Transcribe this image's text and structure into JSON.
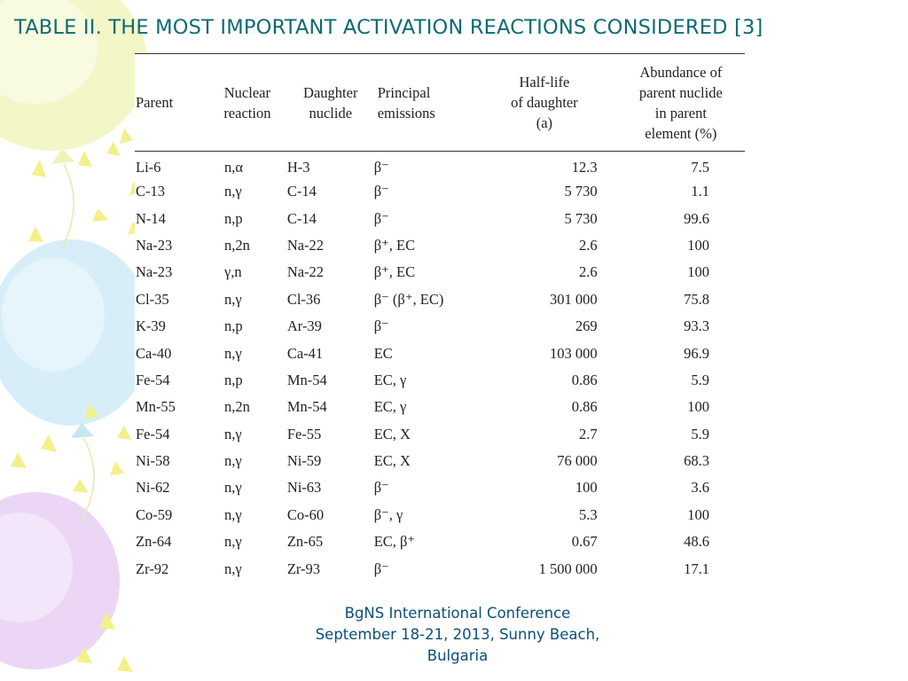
{
  "slide": {
    "title": "TABLE II. THE MOST IMPORTANT ACTIVATION REACTIONS CONSIDERED [3]"
  },
  "table": {
    "headers": [
      "Parent",
      "Nuclear reaction",
      "Daughter nuclide",
      "Principal emissions",
      "Half-life of daughter (a)",
      "Abundance of parent nuclide in parent element (%)"
    ],
    "rows": [
      {
        "parent": "Li-6",
        "reaction": "n,α",
        "daughter": "H-3",
        "emissions": "β⁻",
        "half_life": "12.3",
        "abundance": "7.5"
      },
      {
        "parent": "C-13",
        "reaction": "n,γ",
        "daughter": "C-14",
        "emissions": "β⁻",
        "half_life": "5 730",
        "abundance": "1.1"
      },
      {
        "parent": "N-14",
        "reaction": "n,p",
        "daughter": "C-14",
        "emissions": "β⁻",
        "half_life": "5 730",
        "abundance": "99.6"
      },
      {
        "parent": "Na-23",
        "reaction": "n,2n",
        "daughter": "Na-22",
        "emissions": "β⁺, EC",
        "half_life": "2.6",
        "abundance": "100"
      },
      {
        "parent": "Na-23",
        "reaction": "γ,n",
        "daughter": "Na-22",
        "emissions": "β⁺, EC",
        "half_life": "2.6",
        "abundance": "100"
      },
      {
        "parent": "Cl-35",
        "reaction": "n,γ",
        "daughter": "Cl-36",
        "emissions": "β⁻ (β⁺, EC)",
        "half_life": "301 000",
        "abundance": "75.8"
      },
      {
        "parent": "K-39",
        "reaction": "n,p",
        "daughter": "Ar-39",
        "emissions": "β⁻",
        "half_life": "269",
        "abundance": "93.3"
      },
      {
        "parent": "Ca-40",
        "reaction": "n,γ",
        "daughter": "Ca-41",
        "emissions": "EC",
        "half_life": "103 000",
        "abundance": "96.9"
      },
      {
        "parent": "Fe-54",
        "reaction": "n,p",
        "daughter": "Mn-54",
        "emissions": "EC, γ",
        "half_life": "0.86",
        "abundance": "5.9"
      },
      {
        "parent": "Mn-55",
        "reaction": "n,2n",
        "daughter": "Mn-54",
        "emissions": "EC, γ",
        "half_life": "0.86",
        "abundance": "100"
      },
      {
        "parent": "Fe-54",
        "reaction": "n,γ",
        "daughter": "Fe-55",
        "emissions": "EC, X",
        "half_life": "2.7",
        "abundance": "5.9"
      },
      {
        "parent": "Ni-58",
        "reaction": "n,γ",
        "daughter": "Ni-59",
        "emissions": "EC, X",
        "half_life": "76 000",
        "abundance": "68.3"
      },
      {
        "parent": "Ni-62",
        "reaction": "n,γ",
        "daughter": "Ni-63",
        "emissions": "β⁻",
        "half_life": "100",
        "abundance": "3.6"
      },
      {
        "parent": "Co-59",
        "reaction": "n,γ",
        "daughter": "Co-60",
        "emissions": "β⁻, γ",
        "half_life": "5.3",
        "abundance": "100"
      },
      {
        "parent": "Zn-64",
        "reaction": "n,γ",
        "daughter": "Zn-65",
        "emissions": "EC, β⁺",
        "half_life": "0.67",
        "abundance": "48.6"
      },
      {
        "parent": "Zr-92",
        "reaction": "n,γ",
        "daughter": "Zr-93",
        "emissions": "β⁻",
        "half_life": "1 500 000",
        "abundance": "17.1"
      }
    ]
  },
  "footer": {
    "line1": "BgNS International Conference",
    "line2": "September 18-21, 2013, Sunny Beach,",
    "line3": "Bulgaria"
  },
  "colors": {
    "title": "#0b6b73",
    "footer": "#0b4f7a",
    "balloon_yellow": "#f3f7c8",
    "balloon_blue": "#d7eef8",
    "balloon_purple": "#ecd6f5",
    "ray_yellow": "#f3f08a"
  }
}
